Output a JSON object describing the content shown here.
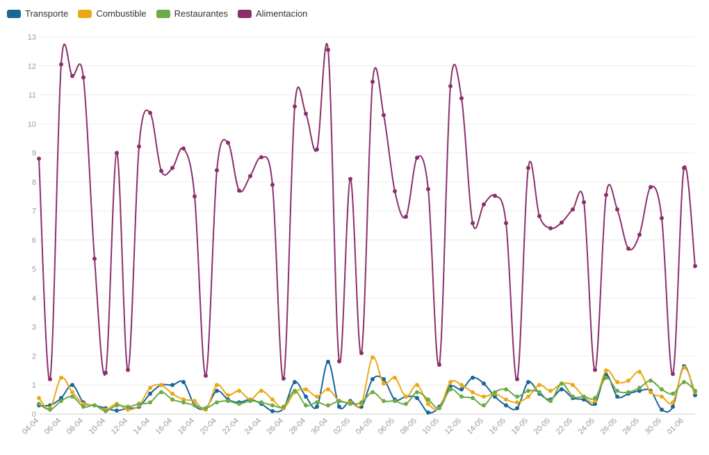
{
  "chart_data": {
    "type": "line",
    "title": "",
    "xlabel": "",
    "ylabel": "",
    "ylim": [
      0,
      13
    ],
    "yticks": [
      "0",
      "1",
      "2",
      "3",
      "4",
      "5",
      "6",
      "7",
      "8",
      "9",
      "10",
      "11",
      "12",
      "13"
    ],
    "x": [
      "04-04",
      "05-04",
      "06-04",
      "07-04",
      "08-04",
      "09-04",
      "10-04",
      "11-04",
      "12-04",
      "13-04",
      "14-04",
      "15-04",
      "16-04",
      "17-04",
      "18-04",
      "19-04",
      "20-04",
      "21-04",
      "22-04",
      "23-04",
      "24-04",
      "25-04",
      "26-04",
      "27-04",
      "28-04",
      "29-04",
      "30-04",
      "01-05",
      "02-05",
      "03-05",
      "04-05",
      "05-05",
      "06-05",
      "07-05",
      "08-05",
      "09-05",
      "10-05",
      "11-05",
      "12-05",
      "13-05",
      "14-05",
      "15-05",
      "16-05",
      "17-05",
      "18-05",
      "19-05",
      "20-05",
      "21-05",
      "22-05",
      "23-05",
      "24-05",
      "25-05",
      "26-05",
      "27-05",
      "28-05",
      "29-05",
      "30-05",
      "31-05",
      "01-06",
      "02-06"
    ],
    "xtick_labels": [
      "04-04",
      "",
      "06-04",
      "",
      "08-04",
      "",
      "10-04",
      "",
      "12-04",
      "",
      "14-04",
      "",
      "16-04",
      "",
      "18-04",
      "",
      "20-04",
      "",
      "22-04",
      "",
      "24-04",
      "",
      "26-04",
      "",
      "28-04",
      "",
      "30-04",
      "",
      "02-05",
      "",
      "04-05",
      "",
      "06-05",
      "",
      "08-05",
      "",
      "10-05",
      "",
      "12-05",
      "",
      "14-05",
      "",
      "16-05",
      "",
      "18-05",
      "",
      "20-05",
      "",
      "22-05",
      "",
      "24-05",
      "",
      "26-05",
      "",
      "28-05",
      "",
      "30-05",
      "",
      "01-06",
      ""
    ],
    "series": [
      {
        "name": "Transporte",
        "color": "#1b6597",
        "values": [
          0.3,
          0.3,
          0.55,
          1.0,
          0.4,
          0.3,
          0.2,
          0.12,
          0.2,
          0.25,
          0.7,
          1.0,
          1.0,
          1.1,
          0.3,
          0.2,
          0.8,
          0.5,
          0.4,
          0.5,
          0.35,
          0.1,
          0.2,
          1.1,
          0.6,
          0.25,
          1.8,
          0.25,
          0.45,
          0.25,
          1.2,
          1.2,
          0.5,
          0.6,
          0.55,
          0.05,
          0.25,
          0.95,
          0.85,
          1.25,
          1.05,
          0.6,
          0.3,
          0.2,
          1.1,
          0.7,
          0.5,
          0.85,
          0.55,
          0.5,
          0.35,
          1.35,
          0.6,
          0.7,
          0.8,
          0.8,
          0.15,
          0.25,
          1.65,
          0.65
        ]
      },
      {
        "name": "Combustible",
        "color": "#e9a919",
        "values": [
          0.55,
          0.2,
          1.25,
          0.75,
          0.35,
          0.3,
          0.15,
          0.35,
          0.15,
          0.3,
          0.9,
          1.0,
          0.7,
          0.5,
          0.45,
          0.15,
          1.0,
          0.65,
          0.8,
          0.5,
          0.8,
          0.5,
          0.2,
          0.75,
          0.85,
          0.6,
          0.85,
          0.45,
          0.4,
          0.35,
          1.95,
          1.05,
          1.25,
          0.6,
          1.0,
          0.35,
          0.2,
          1.1,
          1.0,
          0.75,
          0.6,
          0.7,
          0.5,
          0.4,
          0.6,
          1.0,
          0.8,
          1.05,
          1.0,
          0.6,
          0.45,
          1.5,
          1.1,
          1.15,
          1.45,
          0.75,
          0.6,
          0.4,
          1.6,
          0.75
        ]
      },
      {
        "name": "Restaurantes",
        "color": "#6dab46",
        "values": [
          0.35,
          0.15,
          0.45,
          0.6,
          0.25,
          0.3,
          0.1,
          0.3,
          0.25,
          0.35,
          0.4,
          0.75,
          0.5,
          0.4,
          0.3,
          0.2,
          0.4,
          0.45,
          0.35,
          0.45,
          0.4,
          0.3,
          0.25,
          0.8,
          0.3,
          0.4,
          0.3,
          0.45,
          0.35,
          0.4,
          0.75,
          0.45,
          0.45,
          0.35,
          0.75,
          0.5,
          0.2,
          0.85,
          0.6,
          0.55,
          0.3,
          0.75,
          0.85,
          0.6,
          0.8,
          0.75,
          0.45,
          1.05,
          0.6,
          0.6,
          0.55,
          1.25,
          0.8,
          0.75,
          0.9,
          1.15,
          0.85,
          0.7,
          1.1,
          0.8
        ]
      },
      {
        "name": "Alimentacion",
        "color": "#8a2f6b",
        "values": [
          8.8,
          1.2,
          12.05,
          11.65,
          11.6,
          5.35,
          1.42,
          9.0,
          1.52,
          9.22,
          10.38,
          8.38,
          8.48,
          9.15,
          7.5,
          1.32,
          8.4,
          9.35,
          7.7,
          8.2,
          8.85,
          7.9,
          1.22,
          10.6,
          10.35,
          9.12,
          12.55,
          1.82,
          8.1,
          2.1,
          11.45,
          10.3,
          7.68,
          6.8,
          8.83,
          7.75,
          1.7,
          11.3,
          10.88,
          6.58,
          7.22,
          7.52,
          6.58,
          1.2,
          8.48,
          6.82,
          6.4,
          6.6,
          7.05,
          7.3,
          1.52,
          7.55,
          7.05,
          5.7,
          6.18,
          7.82,
          6.75,
          1.38,
          8.48,
          5.1
        ]
      }
    ],
    "legend": "top-left",
    "grid": true
  }
}
